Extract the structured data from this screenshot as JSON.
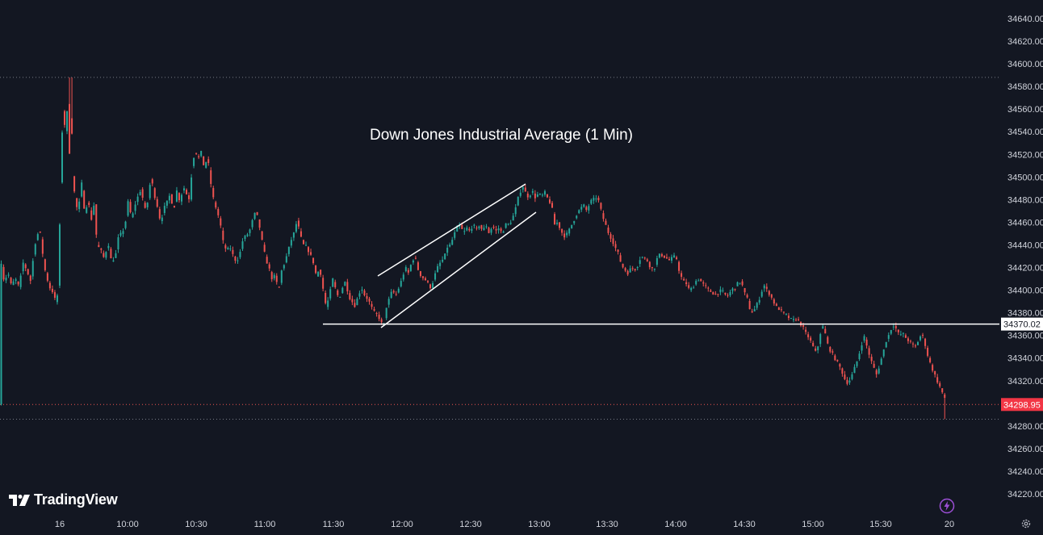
{
  "chart_data": {
    "type": "candlestick",
    "title": "Down Jones Industrial Average (1 Min)",
    "x_tick_labels": [
      "16",
      "10:00",
      "10:30",
      "11:00",
      "11:30",
      "12:00",
      "12:30",
      "13:00",
      "13:30",
      "14:00",
      "14:30",
      "15:00",
      "15:30",
      "20"
    ],
    "y_tick_labels": [
      "34640.00",
      "34620.00",
      "34600.00",
      "34580.00",
      "34560.00",
      "34540.00",
      "34520.00",
      "34500.00",
      "34480.00",
      "34460.00",
      "34440.00",
      "34420.00",
      "34400.00",
      "34380.00",
      "34360.00",
      "34340.00",
      "34320.00",
      "34300.00",
      "34280.00",
      "34260.00",
      "34240.00",
      "34220.00"
    ],
    "ylim": [
      34210,
      34650
    ],
    "grid": false,
    "series_path": [
      [
        0,
        34432
      ],
      [
        5,
        34408
      ],
      [
        10,
        34415
      ],
      [
        14,
        34404
      ],
      [
        19,
        34410
      ],
      [
        24,
        34402
      ],
      [
        28,
        34425
      ],
      [
        33,
        34418
      ],
      [
        38,
        34408
      ],
      [
        43,
        34440
      ],
      [
        49,
        34455
      ],
      [
        55,
        34420
      ],
      [
        61,
        34403
      ],
      [
        66,
        34398
      ],
      [
        70,
        34386
      ],
      [
        73,
        34415
      ],
      [
        75,
        34500
      ],
      [
        78,
        34560
      ],
      [
        81,
        34540
      ],
      [
        84,
        34565
      ],
      [
        86,
        34520
      ],
      [
        88,
        34586
      ],
      [
        90,
        34500
      ],
      [
        94,
        34475
      ],
      [
        97,
        34470
      ],
      [
        101,
        34495
      ],
      [
        105,
        34468
      ],
      [
        109,
        34480
      ],
      [
        113,
        34462
      ],
      [
        117,
        34478
      ],
      [
        120,
        34440
      ],
      [
        125,
        34435
      ],
      [
        129,
        34428
      ],
      [
        134,
        34442
      ],
      [
        138,
        34425
      ],
      [
        143,
        34430
      ],
      [
        147,
        34448
      ],
      [
        151,
        34450
      ],
      [
        155,
        34458
      ],
      [
        159,
        34480
      ],
      [
        163,
        34462
      ],
      [
        167,
        34475
      ],
      [
        171,
        34483
      ],
      [
        175,
        34490
      ],
      [
        179,
        34470
      ],
      [
        183,
        34478
      ],
      [
        187,
        34500
      ],
      [
        191,
        34485
      ],
      [
        195,
        34474
      ],
      [
        199,
        34460
      ],
      [
        203,
        34472
      ],
      [
        207,
        34478
      ],
      [
        211,
        34485
      ],
      [
        215,
        34470
      ],
      [
        219,
        34488
      ],
      [
        223,
        34478
      ],
      [
        227,
        34492
      ],
      [
        231,
        34485
      ],
      [
        235,
        34480
      ],
      [
        238,
        34510
      ],
      [
        242,
        34525
      ],
      [
        245,
        34515
      ],
      [
        249,
        34522
      ],
      [
        253,
        34508
      ],
      [
        257,
        34518
      ],
      [
        261,
        34495
      ],
      [
        265,
        34478
      ],
      [
        269,
        34470
      ],
      [
        273,
        34458
      ],
      [
        277,
        34440
      ],
      [
        281,
        34435
      ],
      [
        285,
        34438
      ],
      [
        289,
        34430
      ],
      [
        293,
        34425
      ],
      [
        297,
        34432
      ],
      [
        301,
        34445
      ],
      [
        305,
        34448
      ],
      [
        309,
        34452
      ],
      [
        313,
        34462
      ],
      [
        317,
        34470
      ],
      [
        321,
        34458
      ],
      [
        325,
        34442
      ],
      [
        329,
        34428
      ],
      [
        333,
        34420
      ],
      [
        337,
        34410
      ],
      [
        341,
        34413
      ],
      [
        345,
        34398
      ],
      [
        349,
        34418
      ],
      [
        353,
        34425
      ],
      [
        357,
        34435
      ],
      [
        361,
        34445
      ],
      [
        365,
        34452
      ],
      [
        368,
        34462
      ],
      [
        372,
        34448
      ],
      [
        376,
        34440
      ],
      [
        380,
        34438
      ],
      [
        384,
        34432
      ],
      [
        388,
        34425
      ],
      [
        392,
        34412
      ],
      [
        396,
        34420
      ],
      [
        400,
        34402
      ],
      [
        404,
        34385
      ],
      [
        408,
        34395
      ],
      [
        412,
        34410
      ],
      [
        416,
        34400
      ],
      [
        420,
        34392
      ],
      [
        424,
        34402
      ],
      [
        428,
        34408
      ],
      [
        432,
        34395
      ],
      [
        436,
        34390
      ],
      [
        440,
        34386
      ],
      [
        444,
        34396
      ],
      [
        448,
        34402
      ],
      [
        452,
        34395
      ],
      [
        456,
        34392
      ],
      [
        460,
        34385
      ],
      [
        464,
        34380
      ],
      [
        468,
        34378
      ],
      [
        472,
        34372
      ],
      [
        475,
        34366
      ],
      [
        478,
        34384
      ],
      [
        482,
        34392
      ],
      [
        486,
        34400
      ],
      [
        490,
        34395
      ],
      [
        494,
        34402
      ],
      [
        498,
        34410
      ],
      [
        502,
        34420
      ],
      [
        506,
        34415
      ],
      [
        510,
        34425
      ],
      [
        514,
        34430
      ],
      [
        518,
        34418
      ],
      [
        522,
        34412
      ],
      [
        526,
        34410
      ],
      [
        530,
        34406
      ],
      [
        534,
        34402
      ],
      [
        538,
        34412
      ],
      [
        542,
        34420
      ],
      [
        546,
        34425
      ],
      [
        550,
        34428
      ],
      [
        554,
        34438
      ],
      [
        558,
        34440
      ],
      [
        562,
        34448
      ],
      [
        566,
        34455
      ],
      [
        570,
        34458
      ],
      [
        574,
        34450
      ],
      [
        578,
        34455
      ],
      [
        582,
        34452
      ],
      [
        586,
        34458
      ],
      [
        590,
        34453
      ],
      [
        594,
        34458
      ],
      [
        598,
        34452
      ],
      [
        602,
        34458
      ],
      [
        606,
        34450
      ],
      [
        610,
        34457
      ],
      [
        614,
        34452
      ],
      [
        618,
        34455
      ],
      [
        622,
        34450
      ],
      [
        626,
        34458
      ],
      [
        630,
        34458
      ],
      [
        634,
        34462
      ],
      [
        638,
        34470
      ],
      [
        642,
        34482
      ],
      [
        645,
        34488
      ],
      [
        648,
        34492
      ],
      [
        651,
        34486
      ],
      [
        655,
        34482
      ],
      [
        659,
        34488
      ],
      [
        663,
        34482
      ],
      [
        667,
        34485
      ],
      [
        671,
        34483
      ],
      [
        675,
        34486
      ],
      [
        679,
        34480
      ],
      [
        683,
        34476
      ],
      [
        687,
        34458
      ],
      [
        691,
        34460
      ],
      [
        695,
        34452
      ],
      [
        699,
        34448
      ],
      [
        703,
        34450
      ],
      [
        707,
        34456
      ],
      [
        711,
        34462
      ],
      [
        715,
        34468
      ],
      [
        719,
        34472
      ],
      [
        723,
        34475
      ],
      [
        727,
        34470
      ],
      [
        731,
        34478
      ],
      [
        735,
        34480
      ],
      [
        739,
        34482
      ],
      [
        742,
        34478
      ],
      [
        746,
        34466
      ],
      [
        750,
        34458
      ],
      [
        754,
        34450
      ],
      [
        758,
        34445
      ],
      [
        762,
        34438
      ],
      [
        766,
        34432
      ],
      [
        770,
        34422
      ],
      [
        774,
        34418
      ],
      [
        778,
        34415
      ],
      [
        782,
        34420
      ],
      [
        786,
        34418
      ],
      [
        790,
        34422
      ],
      [
        794,
        34430
      ],
      [
        798,
        34428
      ],
      [
        802,
        34426
      ],
      [
        806,
        34420
      ],
      [
        810,
        34418
      ],
      [
        814,
        34428
      ],
      [
        818,
        34432
      ],
      [
        822,
        34430
      ],
      [
        826,
        34428
      ],
      [
        830,
        34426
      ],
      [
        834,
        34430
      ],
      [
        838,
        34428
      ],
      [
        842,
        34415
      ],
      [
        846,
        34408
      ],
      [
        850,
        34406
      ],
      [
        854,
        34400
      ],
      [
        858,
        34402
      ],
      [
        862,
        34408
      ],
      [
        866,
        34410
      ],
      [
        870,
        34406
      ],
      [
        874,
        34403
      ],
      [
        878,
        34400
      ],
      [
        882,
        34398
      ],
      [
        886,
        34396
      ],
      [
        890,
        34398
      ],
      [
        894,
        34400
      ],
      [
        898,
        34396
      ],
      [
        902,
        34395
      ],
      [
        906,
        34400
      ],
      [
        910,
        34402
      ],
      [
        914,
        34406
      ],
      [
        918,
        34408
      ],
      [
        922,
        34398
      ],
      [
        926,
        34392
      ],
      [
        930,
        34380
      ],
      [
        934,
        34382
      ],
      [
        938,
        34388
      ],
      [
        942,
        34395
      ],
      [
        946,
        34405
      ],
      [
        950,
        34400
      ],
      [
        954,
        34396
      ],
      [
        958,
        34390
      ],
      [
        962,
        34385
      ],
      [
        966,
        34383
      ],
      [
        970,
        34380
      ],
      [
        974,
        34378
      ],
      [
        978,
        34375
      ],
      [
        982,
        34373
      ],
      [
        986,
        34375
      ],
      [
        990,
        34372
      ],
      [
        994,
        34368
      ],
      [
        998,
        34362
      ],
      [
        1002,
        34358
      ],
      [
        1006,
        34352
      ],
      [
        1010,
        34345
      ],
      [
        1014,
        34352
      ],
      [
        1018,
        34370
      ],
      [
        1022,
        34362
      ],
      [
        1026,
        34350
      ],
      [
        1030,
        34345
      ],
      [
        1034,
        34340
      ],
      [
        1038,
        34335
      ],
      [
        1042,
        34330
      ],
      [
        1046,
        34322
      ],
      [
        1050,
        34318
      ],
      [
        1054,
        34322
      ],
      [
        1058,
        34330
      ],
      [
        1062,
        34338
      ],
      [
        1066,
        34348
      ],
      [
        1070,
        34360
      ],
      [
        1074,
        34350
      ],
      [
        1078,
        34340
      ],
      [
        1082,
        34332
      ],
      [
        1086,
        34325
      ],
      [
        1090,
        34335
      ],
      [
        1094,
        34345
      ],
      [
        1098,
        34356
      ],
      [
        1102,
        34362
      ],
      [
        1106,
        34370
      ],
      [
        1110,
        34366
      ],
      [
        1114,
        34360
      ],
      [
        1118,
        34362
      ],
      [
        1122,
        34358
      ],
      [
        1126,
        34355
      ],
      [
        1130,
        34352
      ],
      [
        1134,
        34350
      ],
      [
        1138,
        34356
      ],
      [
        1142,
        34362
      ],
      [
        1146,
        34352
      ],
      [
        1150,
        34340
      ],
      [
        1154,
        34332
      ],
      [
        1158,
        34325
      ],
      [
        1162,
        34318
      ],
      [
        1166,
        34312
      ],
      [
        1170,
        34304
      ],
      [
        1173,
        34299
      ]
    ],
    "horizontal_level": 34370.02,
    "last_price": 34298.95,
    "session_high": 34588,
    "session_low": 34286,
    "colors": {
      "up": "#26a69a",
      "down": "#ef5350",
      "background": "#131722",
      "text": "#d1d4dc",
      "drawing": "#ffffff"
    }
  },
  "price_tags": {
    "level": "34370.02",
    "last": "34298.95"
  },
  "brand": {
    "name": "TradingView"
  }
}
